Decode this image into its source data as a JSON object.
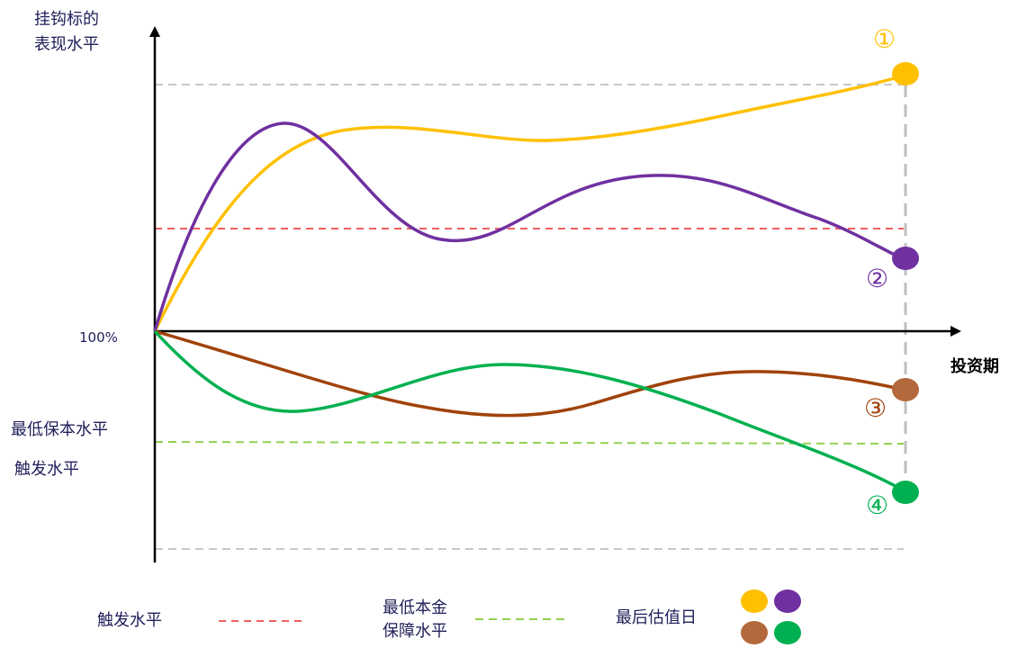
{
  "labels": {
    "y_axis_line1": "挂钩标的",
    "y_axis_line2": "表现水平",
    "x_axis": "投资期",
    "baseline": "100%",
    "min_protection": "最低保本水平",
    "trigger": "触发水平"
  },
  "legend": {
    "trigger": "触发水平",
    "min_principal_line1": "最低本金",
    "min_principal_line2": "保障水平",
    "final_valuation": "最后估值日"
  },
  "scenarios": [
    {
      "marker": "①",
      "color": "#FFC000"
    },
    {
      "marker": "②",
      "color": "#7030A0"
    },
    {
      "marker": "③",
      "color": "#A0430A"
    },
    {
      "marker": "④",
      "color": "#00B050"
    }
  ],
  "colors": {
    "axis": "#000000",
    "trigger_line": "#F06060",
    "protection_line": "#92D050",
    "guide_line": "#C8C8C8",
    "final_date_line": "#BFBFBF",
    "text": "#1F1F5A",
    "dot_yellow": "#FFC000",
    "dot_purple": "#7030A0",
    "dot_brown": "#B4693C",
    "dot_green": "#00B050"
  }
}
